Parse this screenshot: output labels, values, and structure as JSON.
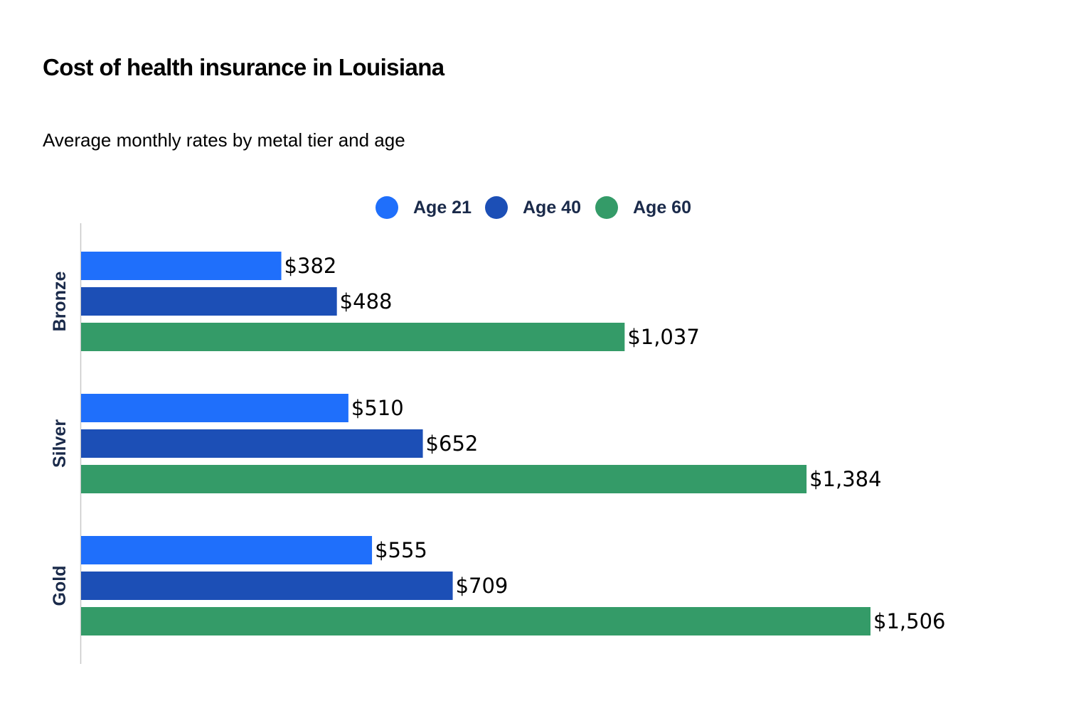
{
  "header": {
    "title": "Cost of health insurance in Louisiana",
    "subtitle": "Average monthly rates by metal tier and age"
  },
  "chart_data": {
    "type": "bar",
    "orientation": "horizontal",
    "title": "Cost of health insurance in Louisiana",
    "subtitle": "Average monthly rates by metal tier and age",
    "categories": [
      "Bronze",
      "Silver",
      "Gold"
    ],
    "series": [
      {
        "name": "Age 21",
        "color": "#1f6ffb",
        "values": [
          382,
          510,
          555
        ],
        "labels": [
          "$382",
          "$510",
          "$555"
        ]
      },
      {
        "name": "Age 40",
        "color": "#1c4fb6",
        "values": [
          488,
          652,
          709
        ],
        "labels": [
          "$488",
          "$652",
          "$709"
        ]
      },
      {
        "name": "Age 60",
        "color": "#349b68",
        "values": [
          1037,
          1384,
          1506
        ],
        "labels": [
          "$1,037",
          "$1,384",
          "$1,506"
        ]
      }
    ],
    "xlim": [
      0,
      1506
    ],
    "grid": false,
    "legend_position": "top-center",
    "axis_color": "#c8c8c8"
  }
}
